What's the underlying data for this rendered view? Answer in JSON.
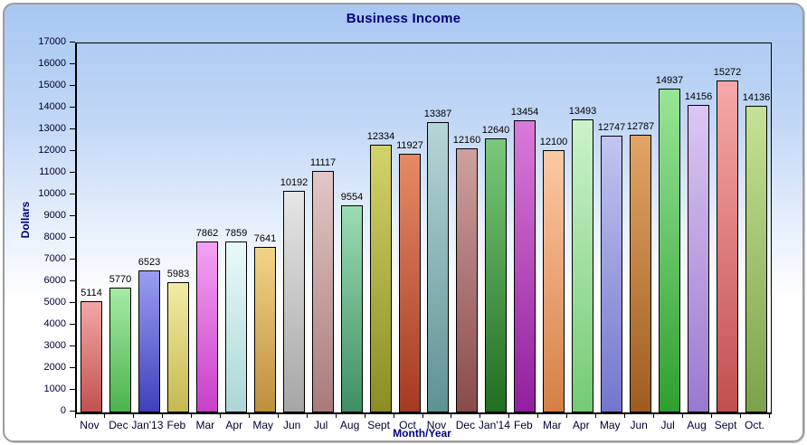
{
  "chart_data": {
    "type": "bar",
    "title": "Business Income",
    "xlabel": "Month/Year",
    "ylabel": "Dollars",
    "ylim": [
      0,
      17000
    ],
    "ytick_step": 1000,
    "grid": "off",
    "legend": "none",
    "categories": [
      "Nov",
      "Dec",
      "Jan'13",
      "Feb",
      "Mar",
      "Apr",
      "May",
      "Jun",
      "Jul",
      "Aug",
      "Sept",
      "Oct",
      "Nov",
      "Dec",
      "Jan'14",
      "Feb",
      "Mar",
      "Apr",
      "May",
      "Jun",
      "Jul",
      "Aug",
      "Sept",
      "Oct."
    ],
    "values": [
      5114,
      5770,
      6523,
      5983,
      7862,
      7859,
      7641,
      10192,
      11117,
      9554,
      12334,
      11927,
      13387,
      12160,
      12640,
      13454,
      12100,
      13493,
      12747,
      12787,
      14937,
      14156,
      15272,
      14136
    ],
    "bar_colors": [
      {
        "top": "#f2a6a6",
        "bottom": "#c25252"
      },
      {
        "top": "#a5eba5",
        "bottom": "#4cb34c"
      },
      {
        "top": "#9a9ef0",
        "bottom": "#4040bb"
      },
      {
        "top": "#f2eca6",
        "bottom": "#c5b94f"
      },
      {
        "top": "#f4a2f4",
        "bottom": "#c93fc9"
      },
      {
        "top": "#e8fafa",
        "bottom": "#aed6d6"
      },
      {
        "top": "#f2d488",
        "bottom": "#bd8f3d"
      },
      {
        "top": "#e6e6e6",
        "bottom": "#a6a6a6"
      },
      {
        "top": "#e3c6c6",
        "bottom": "#a87b7b"
      },
      {
        "top": "#9cdcb4",
        "bottom": "#3f8f63"
      },
      {
        "top": "#d3d36b",
        "bottom": "#8c8c23"
      },
      {
        "top": "#e68a66",
        "bottom": "#a43a22"
      },
      {
        "top": "#b6d6d8",
        "bottom": "#5f9292"
      },
      {
        "top": "#cfa0a0",
        "bottom": "#8a4a4a"
      },
      {
        "top": "#7bc87b",
        "bottom": "#206e20"
      },
      {
        "top": "#da7ada",
        "bottom": "#921f9e"
      },
      {
        "top": "#fcc9a5",
        "bottom": "#d57f45"
      },
      {
        "top": "#ccf2cc",
        "bottom": "#74cb74"
      },
      {
        "top": "#c2c4f0",
        "bottom": "#7476cc"
      },
      {
        "top": "#e2a566",
        "bottom": "#9f5c20"
      },
      {
        "top": "#98e698",
        "bottom": "#2f9f2f"
      },
      {
        "top": "#ddc6f2",
        "bottom": "#9a79cf"
      },
      {
        "top": "#f7a9a9",
        "bottom": "#c14f4f"
      },
      {
        "top": "#c6e296",
        "bottom": "#7da24b"
      }
    ],
    "colors": {
      "title_text": "#000080",
      "axis_title_text": "#000080",
      "tick_label_text": "#000033",
      "value_label_text": "#000000",
      "axis_line": "#000000",
      "panel_border": "#9c9c9c",
      "background_top": "#a7c7f2",
      "background_bottom": "#ffffff"
    }
  }
}
